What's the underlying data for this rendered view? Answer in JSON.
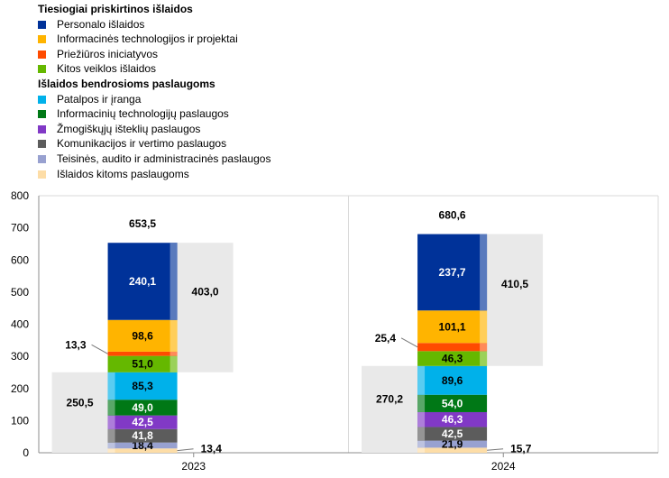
{
  "legend": {
    "group1_title": "Tiesiogiai priskirtinos išlaidos",
    "group1_items": [
      {
        "label": "Personalo išlaidos",
        "color": "#003299"
      },
      {
        "label": "Informacinės technologijos ir projektai",
        "color": "#FFB400"
      },
      {
        "label": "Priežiūros iniciatyvos",
        "color": "#FF4B00"
      },
      {
        "label": "Kitos veiklos išlaidos",
        "color": "#65B800"
      }
    ],
    "group2_title": "Išlaidos bendrosioms paslaugoms",
    "group2_items": [
      {
        "label": "Patalpos ir įranga",
        "color": "#00B1EA"
      },
      {
        "label": "Informacinių technologijų paslaugos",
        "color": "#007816"
      },
      {
        "label": "Žmogiškųjų išteklių paslaugos",
        "color": "#8139C6"
      },
      {
        "label": "Komunikacijos ir vertimo paslaugos",
        "color": "#5C5C5C"
      },
      {
        "label": "Teisinės, audito ir administracinės paslaugos",
        "color": "#98A1D0"
      },
      {
        "label": "Išlaidos kitoms paslaugoms",
        "color": "#FDDDA7"
      }
    ]
  },
  "chart_data": {
    "type": "bar",
    "stacked": true,
    "categories": [
      "2023",
      "2024"
    ],
    "ylim": [
      0,
      800
    ],
    "yticks": [
      0,
      100,
      200,
      300,
      400,
      500,
      600,
      700,
      800
    ],
    "grid": false,
    "series": [
      {
        "name": "Išlaidos kitoms paslaugoms",
        "values": [
          13.4,
          15.7
        ],
        "labels": [
          "13,4",
          "15,7"
        ]
      },
      {
        "name": "Teisinės, audito ir administracinės paslaugos",
        "values": [
          18.4,
          21.9
        ],
        "labels": [
          "18,4",
          "21,9"
        ]
      },
      {
        "name": "Komunikacijos ir vertimo paslaugos",
        "values": [
          41.8,
          42.5
        ],
        "labels": [
          "41,8",
          "42,5"
        ]
      },
      {
        "name": "Žmogiškųjų išteklių paslaugos",
        "values": [
          42.5,
          46.3
        ],
        "labels": [
          "42,5",
          "46,3"
        ]
      },
      {
        "name": "Informacinių technologijų paslaugos",
        "values": [
          49.0,
          54.0
        ],
        "labels": [
          "49,0",
          "54,0"
        ]
      },
      {
        "name": "Patalpos ir įranga",
        "values": [
          85.3,
          89.6
        ],
        "labels": [
          "85,3",
          "89,6"
        ]
      },
      {
        "name": "Kitos veiklos išlaidos",
        "values": [
          51.0,
          46.3
        ],
        "labels": [
          "51,0",
          "46,3"
        ]
      },
      {
        "name": "Priežiūros iniciatyvos",
        "values": [
          13.3,
          25.4
        ],
        "labels": [
          "13,3",
          "25,4"
        ]
      },
      {
        "name": "Informacinės technologijos ir projektai",
        "values": [
          98.6,
          101.1
        ],
        "labels": [
          "98,6",
          "101,1"
        ]
      },
      {
        "name": "Personalo išlaidos",
        "values": [
          240.1,
          237.7
        ],
        "labels": [
          "240,1",
          "237,7"
        ]
      }
    ],
    "totals": {
      "values": [
        653.5,
        680.6
      ],
      "labels": [
        "653,5",
        "680,6"
      ]
    },
    "group_totals": {
      "direct": {
        "values": [
          403.0,
          410.5
        ],
        "labels": [
          "403,0",
          "410,5"
        ]
      },
      "shared": {
        "values": [
          250.5,
          270.2
        ],
        "labels": [
          "250,5",
          "270,2"
        ]
      }
    }
  }
}
